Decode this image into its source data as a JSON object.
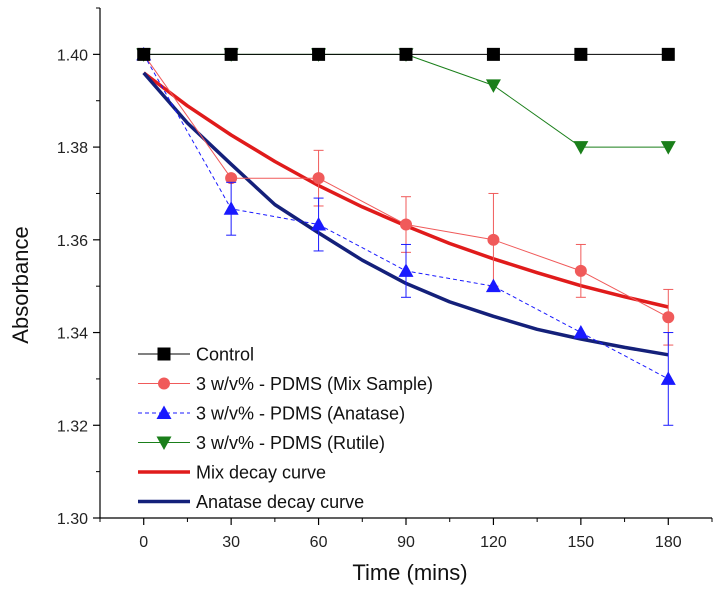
{
  "chart_data": {
    "type": "line",
    "title": "",
    "xlabel": "Time (mins)",
    "ylabel": "Absorbance",
    "xlim": [
      -15,
      195
    ],
    "ylim": [
      1.3,
      1.41
    ],
    "x_ticks": [
      0,
      30,
      60,
      90,
      120,
      150,
      180
    ],
    "x_tick_labels": [
      "0",
      "30",
      "60",
      "90",
      "120",
      "150",
      "180"
    ],
    "y_ticks": [
      1.3,
      1.32,
      1.34,
      1.36,
      1.38,
      1.4
    ],
    "y_tick_labels": [
      "1.30",
      "1.32",
      "1.34",
      "1.36",
      "1.38",
      "1.40"
    ],
    "grid": false,
    "legend_position": "bottom-left",
    "series": [
      {
        "name": "Control",
        "color": "#000000",
        "marker": "square",
        "line_style": "solid",
        "x": [
          0,
          30,
          60,
          90,
          120,
          150,
          180
        ],
        "y": [
          1.4,
          1.4,
          1.4,
          1.4,
          1.4,
          1.4,
          1.4
        ]
      },
      {
        "name": "3 w/v% - PDMS (Mix Sample)",
        "color": "#f05a5a",
        "marker": "circle",
        "line_style": "solid",
        "x": [
          0,
          30,
          60,
          90,
          120,
          150,
          180
        ],
        "y": [
          1.4,
          1.3733,
          1.3733,
          1.3633,
          1.36,
          1.3533,
          1.3433
        ],
        "error": [
          0,
          0,
          0.006,
          0.006,
          0.01,
          0.0057,
          0.006
        ]
      },
      {
        "name": "3 w/v% - PDMS (Anatase)",
        "color": "#1a1aff",
        "marker": "triangle-up",
        "line_style": "dashed",
        "x": [
          0,
          30,
          60,
          90,
          120,
          150,
          180
        ],
        "y": [
          1.4,
          1.3667,
          1.3633,
          1.3533,
          1.35,
          1.34,
          1.33
        ],
        "error": [
          0,
          0.0057,
          0.0057,
          0.0057,
          0,
          0,
          0.01
        ]
      },
      {
        "name": "3 w/v% - PDMS (Rutile)",
        "color": "#1a7f1a",
        "marker": "triangle-down",
        "line_style": "solid",
        "x": [
          0,
          30,
          60,
          90,
          120,
          150,
          180
        ],
        "y": [
          1.4,
          1.4,
          1.4,
          1.4,
          1.3933,
          1.38,
          1.38
        ]
      },
      {
        "name": "Mix decay curve",
        "color": "#e01b1b",
        "marker": "none",
        "line_style": "solid-thick",
        "x": [
          0,
          15,
          30,
          45,
          60,
          75,
          90,
          105,
          120,
          135,
          150,
          165,
          180
        ],
        "y": [
          1.396,
          1.3889,
          1.3826,
          1.3769,
          1.3717,
          1.3671,
          1.363,
          1.3592,
          1.3559,
          1.3529,
          1.3501,
          1.3477,
          1.3455
        ]
      },
      {
        "name": "Anatase decay curve",
        "color": "#14207a",
        "marker": "none",
        "line_style": "solid-thick",
        "x": [
          0,
          15,
          30,
          45,
          60,
          75,
          90,
          105,
          120,
          135,
          150,
          165,
          180
        ],
        "y": [
          1.396,
          1.3852,
          1.3763,
          1.3676,
          1.3615,
          1.3556,
          1.3506,
          1.3466,
          1.3435,
          1.3407,
          1.3386,
          1.3368,
          1.3352
        ]
      }
    ]
  }
}
